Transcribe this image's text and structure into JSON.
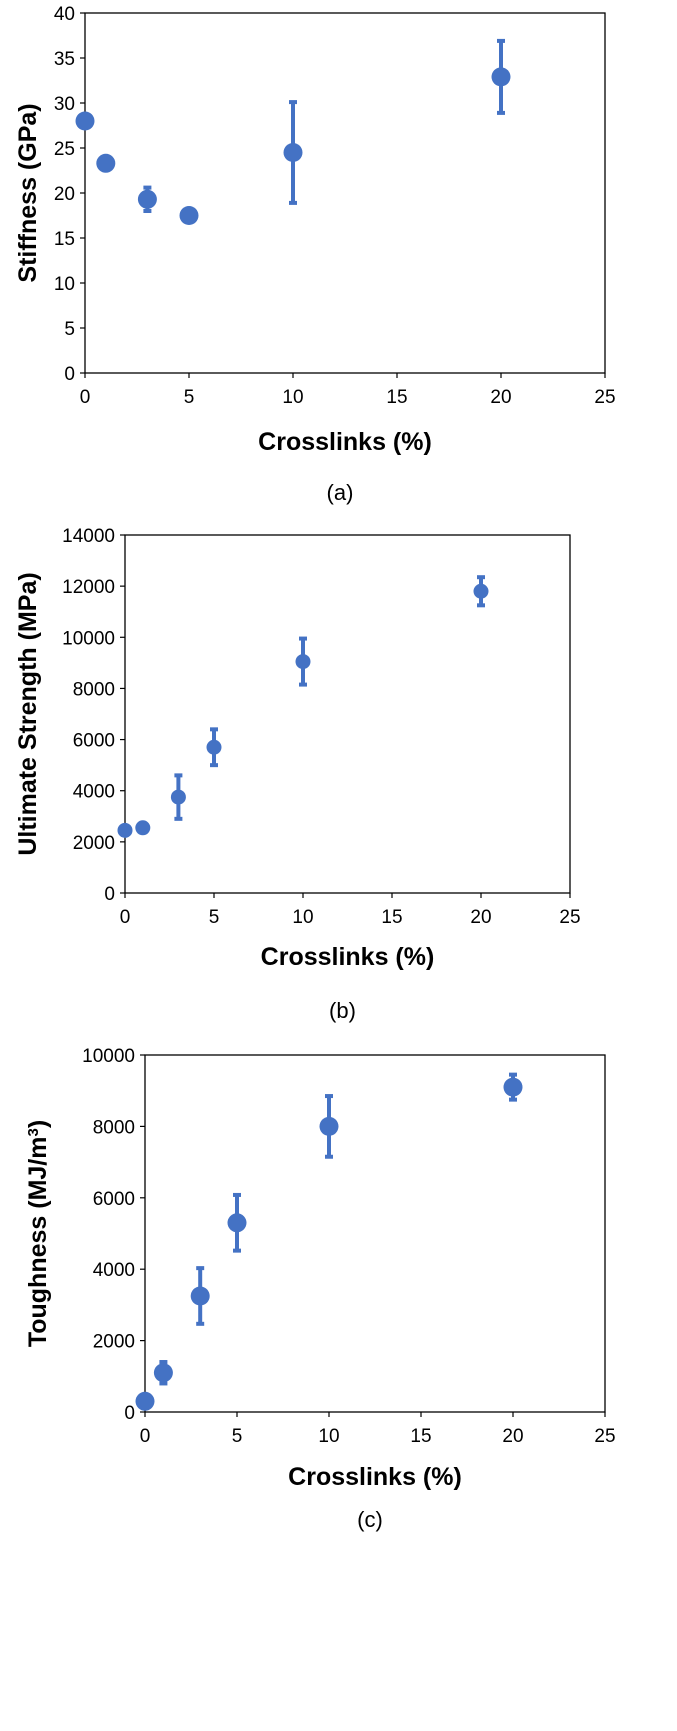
{
  "chart_data": [
    {
      "type": "scatter",
      "panel_label": "(a)",
      "xlabel": "Crosslinks (%)",
      "ylabel": "Stiffness (GPa)",
      "xlim": [
        0,
        25
      ],
      "ylim": [
        0,
        40
      ],
      "xticks": [
        0,
        5,
        10,
        15,
        20,
        25
      ],
      "yticks": [
        0,
        5,
        10,
        15,
        20,
        25,
        30,
        35,
        40
      ],
      "grid": false,
      "marker_color": "#4472C4",
      "points": [
        {
          "x": 0,
          "y": 28.0,
          "err": 0.3
        },
        {
          "x": 1,
          "y": 23.3,
          "err": 0.3
        },
        {
          "x": 3,
          "y": 19.3,
          "err": 1.3
        },
        {
          "x": 5,
          "y": 17.5,
          "err": 0.3
        },
        {
          "x": 10,
          "y": 24.5,
          "err": 5.6
        },
        {
          "x": 20,
          "y": 32.9,
          "err": 4.0
        }
      ]
    },
    {
      "type": "scatter",
      "panel_label": "(b)",
      "xlabel": "Crosslinks (%)",
      "ylabel": "Ultimate Strength (MPa)",
      "xlim": [
        0,
        25
      ],
      "ylim": [
        0,
        14000
      ],
      "xticks": [
        0,
        5,
        10,
        15,
        20,
        25
      ],
      "yticks": [
        0,
        2000,
        4000,
        6000,
        8000,
        10000,
        12000,
        14000
      ],
      "grid": false,
      "marker_color": "#4472C4",
      "points": [
        {
          "x": 0,
          "y": 2450,
          "err": 50
        },
        {
          "x": 1,
          "y": 2550,
          "err": 50
        },
        {
          "x": 3,
          "y": 3750,
          "err": 850
        },
        {
          "x": 5,
          "y": 5700,
          "err": 700
        },
        {
          "x": 10,
          "y": 9050,
          "err": 900
        },
        {
          "x": 20,
          "y": 11800,
          "err": 550
        }
      ]
    },
    {
      "type": "scatter",
      "panel_label": "(c)",
      "xlabel": "Crosslinks (%)",
      "ylabel": "Toughness (MJ/m",
      "ylabel_sup": "3",
      "ylabel_close": ")",
      "xlim": [
        0,
        25
      ],
      "ylim": [
        0,
        10000
      ],
      "xticks": [
        0,
        5,
        10,
        15,
        20,
        25
      ],
      "yticks": [
        0,
        2000,
        4000,
        6000,
        8000,
        10000
      ],
      "grid": false,
      "marker_color": "#4472C4",
      "points": [
        {
          "x": 0,
          "y": 300,
          "err": 50
        },
        {
          "x": 1,
          "y": 1100,
          "err": 300
        },
        {
          "x": 3,
          "y": 3250,
          "err": 780
        },
        {
          "x": 5,
          "y": 5300,
          "err": 780
        },
        {
          "x": 10,
          "y": 8000,
          "err": 850
        },
        {
          "x": 20,
          "y": 9100,
          "err": 350
        }
      ]
    }
  ]
}
